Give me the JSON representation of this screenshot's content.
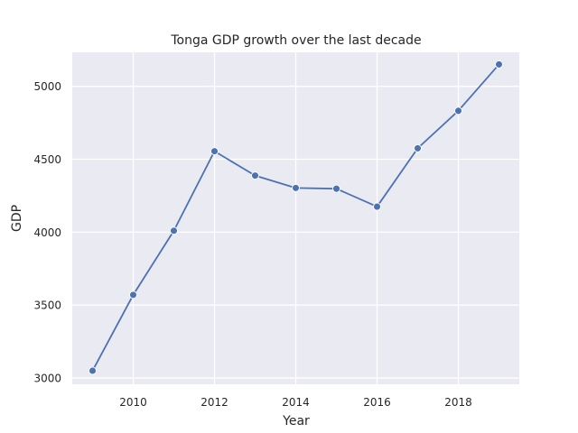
{
  "chart_data": {
    "type": "line",
    "title": "Tonga GDP growth over the last decade",
    "xlabel": "Year",
    "ylabel": "GDP",
    "x": [
      2009,
      2010,
      2011,
      2012,
      2013,
      2014,
      2015,
      2016,
      2017,
      2018,
      2019
    ],
    "series": [
      {
        "values": [
          3050,
          3570,
          4010,
          4555,
          4388,
          4303,
          4298,
          4175,
          4575,
          4832,
          5150
        ],
        "color": "#4c72b0"
      }
    ],
    "xlim": [
      2008.5,
      2019.5
    ],
    "ylim": [
      2957,
      5233
    ],
    "xticks": [
      2010,
      2012,
      2014,
      2016,
      2018
    ],
    "yticks": [
      3000,
      3500,
      4000,
      4500,
      5000
    ],
    "grid": true,
    "background": "#eaeaf2",
    "gridColor": "#ffffff",
    "markers": true
  }
}
